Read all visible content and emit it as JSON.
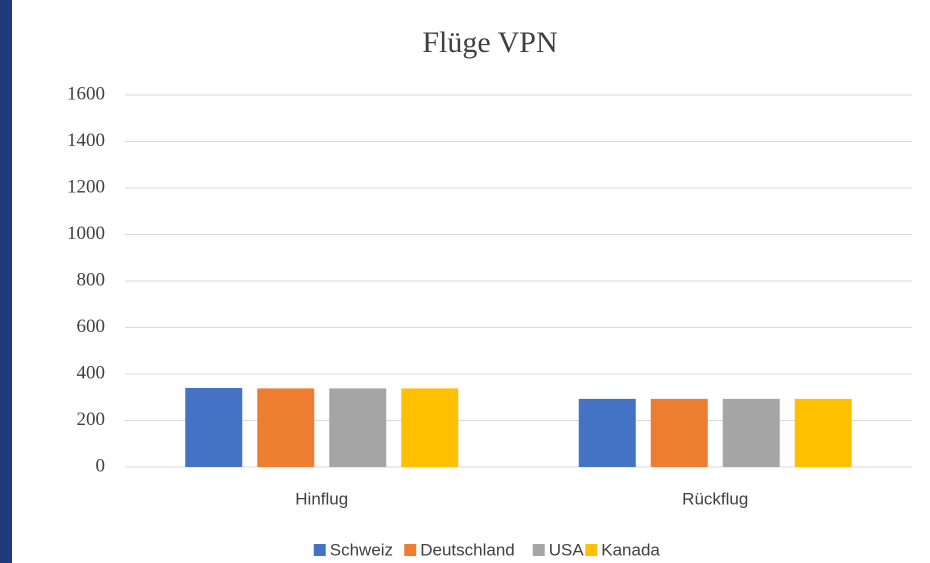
{
  "chart_data": {
    "type": "bar",
    "title": "Flüge VPN",
    "categories": [
      "Hinflug",
      "Rückflug"
    ],
    "series": [
      {
        "name": "Schweiz",
        "color": "#4472c4",
        "values": [
          340,
          293
        ]
      },
      {
        "name": "Deutschland",
        "color": "#ed7d31",
        "values": [
          338,
          293
        ]
      },
      {
        "name": "USA",
        "color": "#a5a5a5",
        "values": [
          338,
          293
        ]
      },
      {
        "name": "Kanada",
        "color": "#ffc000",
        "values": [
          338,
          293
        ]
      }
    ],
    "ylim": [
      0,
      1600
    ],
    "yticks": [
      0,
      200,
      400,
      600,
      800,
      1000,
      1200,
      1400,
      1600
    ],
    "grid": true,
    "legend": "bottom"
  }
}
